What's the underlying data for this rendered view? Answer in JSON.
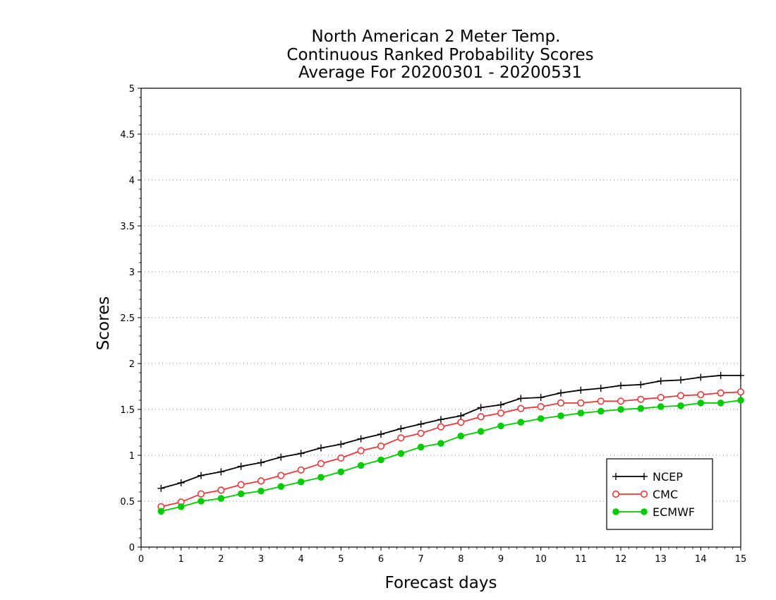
{
  "chart_data": {
    "type": "line",
    "title_lines": [
      "North American 2 Meter Temp.",
      "Continuous Ranked Probability Scores",
      "Average For 20200301 - 20200531"
    ],
    "xlabel": "Forecast days",
    "ylabel": "Scores",
    "xlim": [
      0,
      15
    ],
    "ylim": [
      0,
      5
    ],
    "x_ticks": [
      "0",
      "1",
      "2",
      "3",
      "4",
      "5",
      "6",
      "7",
      "8",
      "9",
      "10",
      "11",
      "12",
      "13",
      "14",
      "15"
    ],
    "y_ticks": [
      "0",
      "0.5",
      "1",
      "1.5",
      "2",
      "2.5",
      "3",
      "3.5",
      "4",
      "4.5",
      "5"
    ],
    "grid": "horizontal dotted",
    "legend_position": "bottom-right",
    "x": [
      0.5,
      1,
      1.5,
      2,
      2.5,
      3,
      3.5,
      4,
      4.5,
      5,
      5.5,
      6,
      6.5,
      7,
      7.5,
      8,
      8.5,
      9,
      9.5,
      10,
      10.5,
      11,
      11.5,
      12,
      12.5,
      13,
      13.5,
      14,
      14.5,
      15
    ],
    "series": [
      {
        "name": "NCEP",
        "color": "#000000",
        "marker": "plus",
        "values": [
          0.64,
          0.7,
          0.78,
          0.82,
          0.88,
          0.92,
          0.98,
          1.02,
          1.08,
          1.12,
          1.18,
          1.23,
          1.29,
          1.34,
          1.39,
          1.43,
          1.52,
          1.55,
          1.62,
          1.63,
          1.68,
          1.71,
          1.73,
          1.76,
          1.77,
          1.81,
          1.82,
          1.85,
          1.87,
          1.87
        ]
      },
      {
        "name": "CMC",
        "color": "#e8393a",
        "marker": "open-circle",
        "values": [
          0.44,
          0.49,
          0.58,
          0.62,
          0.68,
          0.72,
          0.78,
          0.84,
          0.91,
          0.97,
          1.05,
          1.1,
          1.19,
          1.24,
          1.31,
          1.36,
          1.42,
          1.46,
          1.51,
          1.53,
          1.57,
          1.57,
          1.59,
          1.59,
          1.61,
          1.63,
          1.65,
          1.66,
          1.68,
          1.69
        ]
      },
      {
        "name": "ECMWF",
        "color": "#00cc00",
        "marker": "filled-circle",
        "values": [
          0.39,
          0.44,
          0.5,
          0.53,
          0.58,
          0.61,
          0.66,
          0.71,
          0.76,
          0.82,
          0.89,
          0.95,
          1.02,
          1.09,
          1.13,
          1.21,
          1.26,
          1.32,
          1.36,
          1.4,
          1.43,
          1.46,
          1.48,
          1.5,
          1.51,
          1.53,
          1.54,
          1.57,
          1.57,
          1.6
        ]
      }
    ]
  }
}
